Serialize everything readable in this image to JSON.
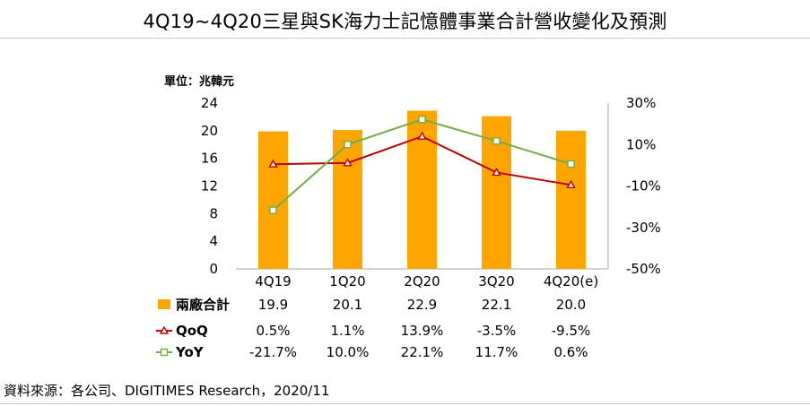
{
  "title": "4Q19~4Q20三星與SK海力士記憶體事業合計營收變化及預測",
  "source": "資料來源：各公司、DIGITIMES Research，2020/11",
  "chart_data": {
    "type": "bar",
    "unit_label": "單位：兆韓元",
    "categories": [
      "4Q19",
      "1Q20",
      "2Q20",
      "3Q20",
      "4Q20(e)"
    ],
    "y_left": {
      "ylim": [
        0,
        24
      ],
      "ticks": [
        "0",
        "4",
        "8",
        "12",
        "16",
        "20",
        "24"
      ]
    },
    "y_right": {
      "ylim": [
        -50,
        30
      ],
      "ticks": [
        "-50%",
        "-30%",
        "-10%",
        "10%",
        "30%"
      ]
    },
    "series": [
      {
        "name": "兩廠合計",
        "kind": "bar",
        "axis": "left",
        "color": "#FFA500",
        "values": [
          19.9,
          20.1,
          22.9,
          22.1,
          20.0
        ],
        "labels": [
          "19.9",
          "20.1",
          "22.9",
          "22.1",
          "20.0"
        ]
      },
      {
        "name": "QoQ",
        "kind": "line",
        "axis": "right",
        "color": "#C00000",
        "marker": "triangle",
        "values": [
          0.5,
          1.1,
          13.9,
          -3.5,
          -9.5
        ],
        "labels": [
          "0.5%",
          "1.1%",
          "13.9%",
          "-3.5%",
          "-9.5%"
        ]
      },
      {
        "name": "YoY",
        "kind": "line",
        "axis": "right",
        "color": "#70AD47",
        "marker": "square",
        "values": [
          -21.7,
          10.0,
          22.1,
          11.7,
          0.6
        ],
        "labels": [
          "-21.7%",
          "10.0%",
          "22.1%",
          "11.7%",
          "0.6%"
        ]
      }
    ]
  }
}
